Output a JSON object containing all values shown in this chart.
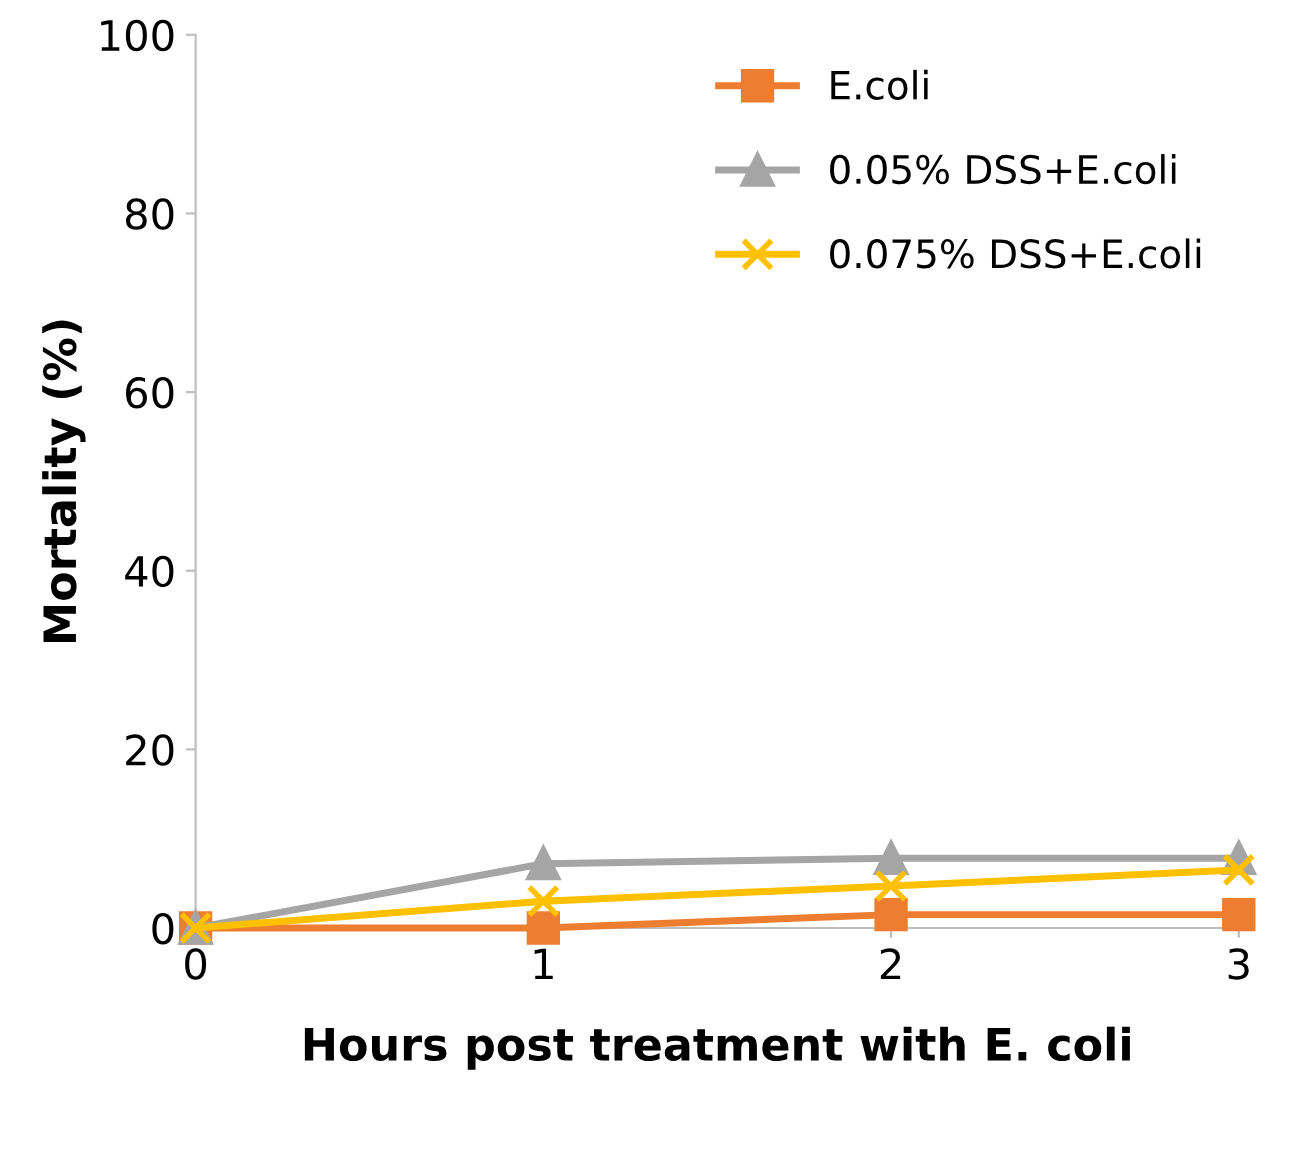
{
  "chart_data": {
    "type": "line",
    "xlabel": "Hours post treatment with E. coli",
    "ylabel": "Mortality (%)",
    "x": [
      0,
      1,
      2,
      3
    ],
    "xlim": [
      0,
      3
    ],
    "xticks": [
      0,
      1,
      2,
      3
    ],
    "ylim": [
      0,
      100
    ],
    "yticks": [
      0,
      20,
      40,
      60,
      80,
      100
    ],
    "grid": false,
    "legend": "top right",
    "line_style": "solid",
    "series": [
      {
        "name": "E.coli",
        "color": "#ed7d31",
        "marker": "square",
        "values": [
          0,
          0,
          1.5,
          1.5
        ]
      },
      {
        "name": "0.05% DSS+E.coli",
        "color": "#a5a5a5",
        "marker": "triangle",
        "values": [
          0,
          7.2,
          7.8,
          7.8
        ]
      },
      {
        "name": "0.075% DSS+E.coli",
        "color": "#ffc000",
        "marker": "cross",
        "values": [
          0,
          3,
          4.7,
          6.5
        ]
      }
    ]
  }
}
